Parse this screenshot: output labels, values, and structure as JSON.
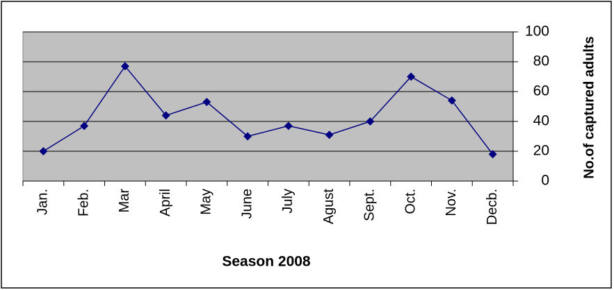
{
  "chart_data": {
    "type": "line",
    "x_label": "Season 2008",
    "y_label": "No.of captured adults",
    "categories": [
      "Jan.",
      "Feb.",
      "Mar",
      "April",
      "May",
      "June",
      "July",
      "Agust",
      "Sept.",
      "Oct.",
      "Nov.",
      "Decb."
    ],
    "values": [
      20,
      37,
      77,
      44,
      53,
      30,
      37,
      31,
      40,
      70,
      54,
      18
    ],
    "color": "#000080",
    "ylim": [
      0,
      100
    ],
    "yticks": [
      0,
      20,
      40,
      60,
      80,
      100
    ],
    "grid": true
  }
}
